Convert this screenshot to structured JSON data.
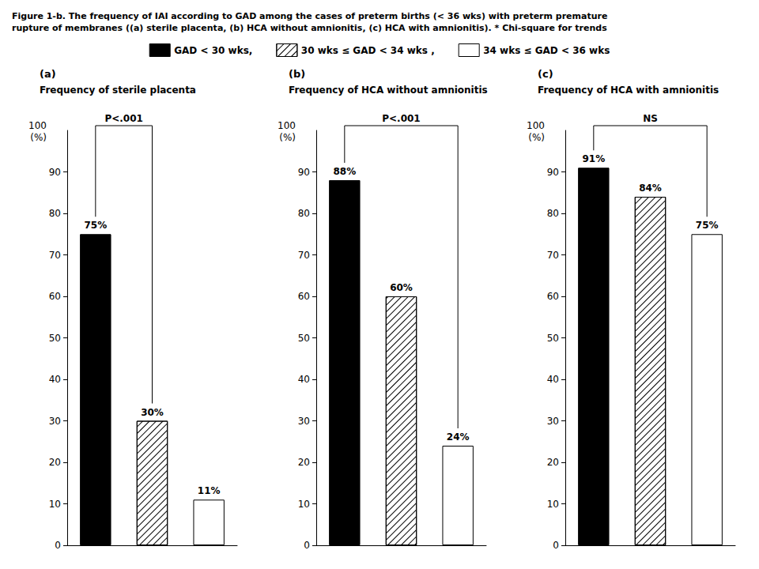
{
  "title": "Figure 1-b. The frequency of IAI according to GAD among the cases of preterm births (< 36 wks) with preterm premature\nrupture of membranes ((a) sterile placenta, (b) HCA without amnionitis, (c) HCA with amnionitis). * Chi-square for trends",
  "legend": "top",
  "chart_data": [
    {
      "type": "bar",
      "title": "(a)",
      "subtitle": "Frequency of sterile placenta",
      "ylabel": "(%)",
      "series": [
        {
          "name": "GAD < 30 wks,",
          "color": "black",
          "values": [
            75
          ],
          "value_labels": [
            "75%"
          ]
        },
        {
          "name": "30 wks ≤ GAD < 34 wks ,",
          "color": "white",
          "values": [
            30
          ],
          "value_labels": [
            "30%"
          ]
        },
        {
          "name": "34 wks ≤ GAD < 36 wks",
          "color": "white",
          "values": [
            11
          ],
          "value_labels": [
            "11%"
          ]
        }
      ],
      "ylim": [
        0,
        100
      ],
      "yticks": [
        0,
        10,
        20,
        30,
        40,
        50,
        60,
        70,
        80,
        90
      ],
      "grid": false,
      "data_labels": true,
      "tick_labels": "y",
      "annotations": [
        {
          "text": "100",
          "y": 100
        },
        {
          "text": "P<.001",
          "from": "GAD < 30 wks,",
          "to": "30 wks ≤ GAD < 34 wks ,"
        }
      ]
    },
    {
      "type": "bar",
      "title": "(b)",
      "subtitle": "Frequency of HCA without amnionitis",
      "ylabel": "(%)",
      "series": [
        {
          "name": "GAD < 30 wks,",
          "color": "black",
          "values": [
            88
          ],
          "value_labels": [
            "88%"
          ]
        },
        {
          "name": "30 wks ≤ GAD < 34 wks ,",
          "color": "white",
          "values": [
            60
          ],
          "value_labels": [
            "60%"
          ]
        },
        {
          "name": "34 wks ≤ GAD < 36 wks",
          "color": "white",
          "values": [
            24
          ],
          "value_labels": [
            "24%"
          ]
        }
      ],
      "ylim": [
        0,
        100
      ],
      "yticks": [
        0,
        10,
        20,
        30,
        40,
        50,
        60,
        70,
        80,
        90
      ],
      "grid": false,
      "data_labels": true,
      "tick_labels": "y",
      "annotations": [
        {
          "text": "100",
          "y": 100
        },
        {
          "text": "P<.001",
          "from": "GAD < 30 wks,",
          "to": "34 wks ≤ GAD < 36 wks"
        }
      ]
    },
    {
      "type": "bar",
      "title": "(c)",
      "subtitle": "Frequency of HCA with amnionitis",
      "ylabel": "(%)",
      "series": [
        {
          "name": "GAD < 30 wks,",
          "color": "black",
          "values": [
            91
          ],
          "value_labels": [
            "91%"
          ]
        },
        {
          "name": "30 wks ≤ GAD < 34 wks ,",
          "color": "white",
          "values": [
            84
          ],
          "value_labels": [
            "84%"
          ]
        },
        {
          "name": "34 wks ≤ GAD < 36 wks",
          "color": "white",
          "values": [
            75
          ],
          "value_labels": [
            "75%"
          ]
        }
      ],
      "ylim": [
        0,
        100
      ],
      "yticks": [
        0,
        10,
        20,
        30,
        40,
        50,
        60,
        70,
        80,
        90
      ],
      "grid": false,
      "data_labels": true,
      "tick_labels": "y",
      "annotations": [
        {
          "text": "100",
          "y": 100
        },
        {
          "text": "NS",
          "from": "GAD < 30 wks,",
          "to": "34 wks ≤ GAD < 36 wks"
        }
      ]
    }
  ]
}
